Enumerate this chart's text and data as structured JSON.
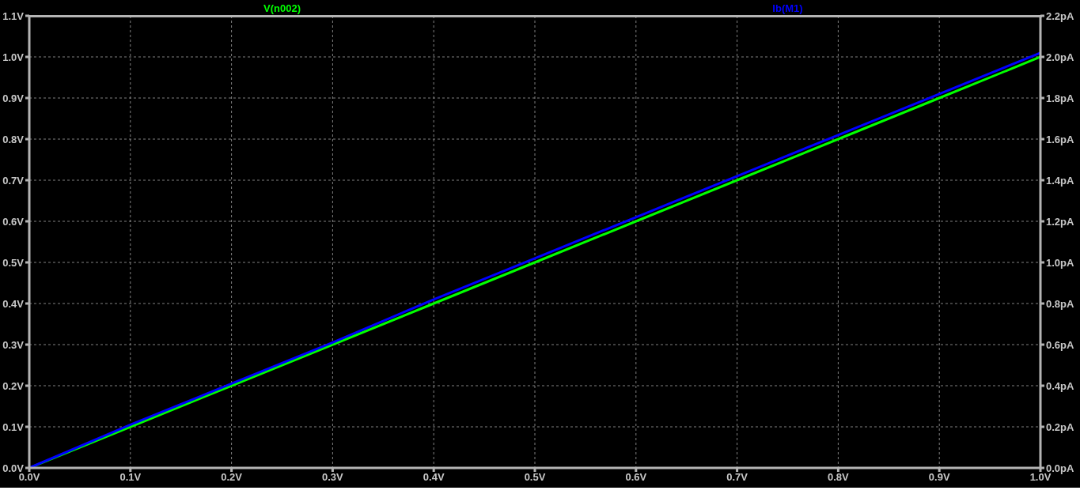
{
  "chart_data": {
    "type": "line",
    "x": [
      0,
      0.1,
      0.2,
      0.3,
      0.4,
      0.5,
      0.6,
      0.7,
      0.8,
      0.9,
      1.0
    ],
    "series": [
      {
        "name": "V(n002)",
        "color": "#00ff00",
        "values": [
          0,
          0.1,
          0.2,
          0.3,
          0.4,
          0.5,
          0.6,
          0.7,
          0.8,
          0.9,
          1.0
        ]
      },
      {
        "name": "Ib(M1)",
        "color": "#0000ff",
        "axis": "y2",
        "values": [
          0,
          0.21,
          0.41,
          0.61,
          0.82,
          1.02,
          1.22,
          1.42,
          1.62,
          1.82,
          2.02
        ]
      }
    ],
    "xlim": [
      0,
      1
    ],
    "xticks": [
      {
        "value": 0,
        "label": "0.0V"
      },
      {
        "value": 0.1,
        "label": "0.1V"
      },
      {
        "value": 0.2,
        "label": "0.2V"
      },
      {
        "value": 0.3,
        "label": "0.3V"
      },
      {
        "value": 0.4,
        "label": "0.4V"
      },
      {
        "value": 0.5,
        "label": "0.5V"
      },
      {
        "value": 0.6,
        "label": "0.6V"
      },
      {
        "value": 0.7,
        "label": "0.7V"
      },
      {
        "value": 0.8,
        "label": "0.8V"
      },
      {
        "value": 0.9,
        "label": "0.9V"
      },
      {
        "value": 1.0,
        "label": "1.0V"
      }
    ],
    "ylim": [
      0,
      1.1
    ],
    "yticks": [
      {
        "value": 0,
        "label": "0.0V"
      },
      {
        "value": 0.1,
        "label": "0.1V"
      },
      {
        "value": 0.2,
        "label": "0.2V"
      },
      {
        "value": 0.3,
        "label": "0.3V"
      },
      {
        "value": 0.4,
        "label": "0.4V"
      },
      {
        "value": 0.5,
        "label": "0.5V"
      },
      {
        "value": 0.6,
        "label": "0.6V"
      },
      {
        "value": 0.7,
        "label": "0.7V"
      },
      {
        "value": 0.8,
        "label": "0.8V"
      },
      {
        "value": 0.9,
        "label": "0.9V"
      },
      {
        "value": 1.0,
        "label": "1.0V"
      },
      {
        "value": 1.1,
        "label": "1.1V"
      }
    ],
    "y2lim": [
      0,
      2.2
    ],
    "y2ticks": [
      {
        "value": 0,
        "label": "0.0pA"
      },
      {
        "value": 0.2,
        "label": "0.2pA"
      },
      {
        "value": 0.4,
        "label": "0.4pA"
      },
      {
        "value": 0.6,
        "label": "0.6pA"
      },
      {
        "value": 0.8,
        "label": "0.8pA"
      },
      {
        "value": 1.0,
        "label": "1.0pA"
      },
      {
        "value": 1.2,
        "label": "1.2pA"
      },
      {
        "value": 1.4,
        "label": "1.4pA"
      },
      {
        "value": 1.6,
        "label": "1.6pA"
      },
      {
        "value": 1.8,
        "label": "1.8pA"
      },
      {
        "value": 2.0,
        "label": "2.0pA"
      },
      {
        "value": 2.2,
        "label": "2.2pA"
      }
    ],
    "grid": true,
    "legend": "top",
    "line_style": "solid"
  }
}
